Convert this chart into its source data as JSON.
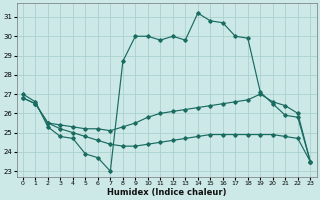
{
  "xlabel": "Humidex (Indice chaleur)",
  "background_color": "#cce9e8",
  "grid_color": "#aad0ce",
  "line_color": "#1a6b60",
  "xlim": [
    -0.5,
    23.5
  ],
  "ylim": [
    22.7,
    31.7
  ],
  "yticks": [
    23,
    24,
    25,
    26,
    27,
    28,
    29,
    30,
    31
  ],
  "xticks": [
    0,
    1,
    2,
    3,
    4,
    5,
    6,
    7,
    8,
    9,
    10,
    11,
    12,
    13,
    14,
    15,
    16,
    17,
    18,
    19,
    20,
    21,
    22,
    23
  ],
  "s1_x": [
    0,
    1,
    2,
    3,
    4,
    5,
    6,
    7,
    8,
    9,
    10,
    11,
    12,
    13,
    14,
    15,
    16,
    17,
    18,
    19,
    20,
    21,
    22,
    23
  ],
  "s1_y": [
    27.0,
    26.6,
    25.3,
    24.8,
    24.7,
    23.9,
    23.7,
    23.0,
    28.7,
    30.0,
    30.0,
    29.8,
    30.0,
    29.8,
    31.2,
    30.8,
    30.7,
    30.0,
    29.9,
    27.1,
    26.5,
    25.9,
    25.8,
    23.5
  ],
  "s2_x": [
    0,
    1,
    2,
    3,
    4,
    5,
    6,
    7,
    8,
    9,
    10,
    11,
    12,
    13,
    14,
    15,
    16,
    17,
    18,
    19,
    20,
    21,
    22,
    23
  ],
  "s2_y": [
    26.8,
    26.5,
    25.5,
    25.4,
    25.3,
    25.2,
    25.2,
    25.1,
    25.3,
    25.5,
    25.8,
    26.0,
    26.1,
    26.2,
    26.3,
    26.4,
    26.5,
    26.6,
    26.7,
    27.0,
    26.6,
    26.4,
    26.0,
    23.5
  ],
  "s3_x": [
    0,
    1,
    2,
    3,
    4,
    5,
    6,
    7,
    8,
    9,
    10,
    11,
    12,
    13,
    14,
    15,
    16,
    17,
    18,
    19,
    20,
    21,
    22,
    23
  ],
  "s3_y": [
    26.8,
    26.5,
    25.5,
    25.2,
    25.0,
    24.8,
    24.6,
    24.4,
    24.3,
    24.3,
    24.4,
    24.5,
    24.6,
    24.7,
    24.8,
    24.9,
    24.9,
    24.9,
    24.9,
    24.9,
    24.9,
    24.8,
    24.7,
    23.5
  ]
}
